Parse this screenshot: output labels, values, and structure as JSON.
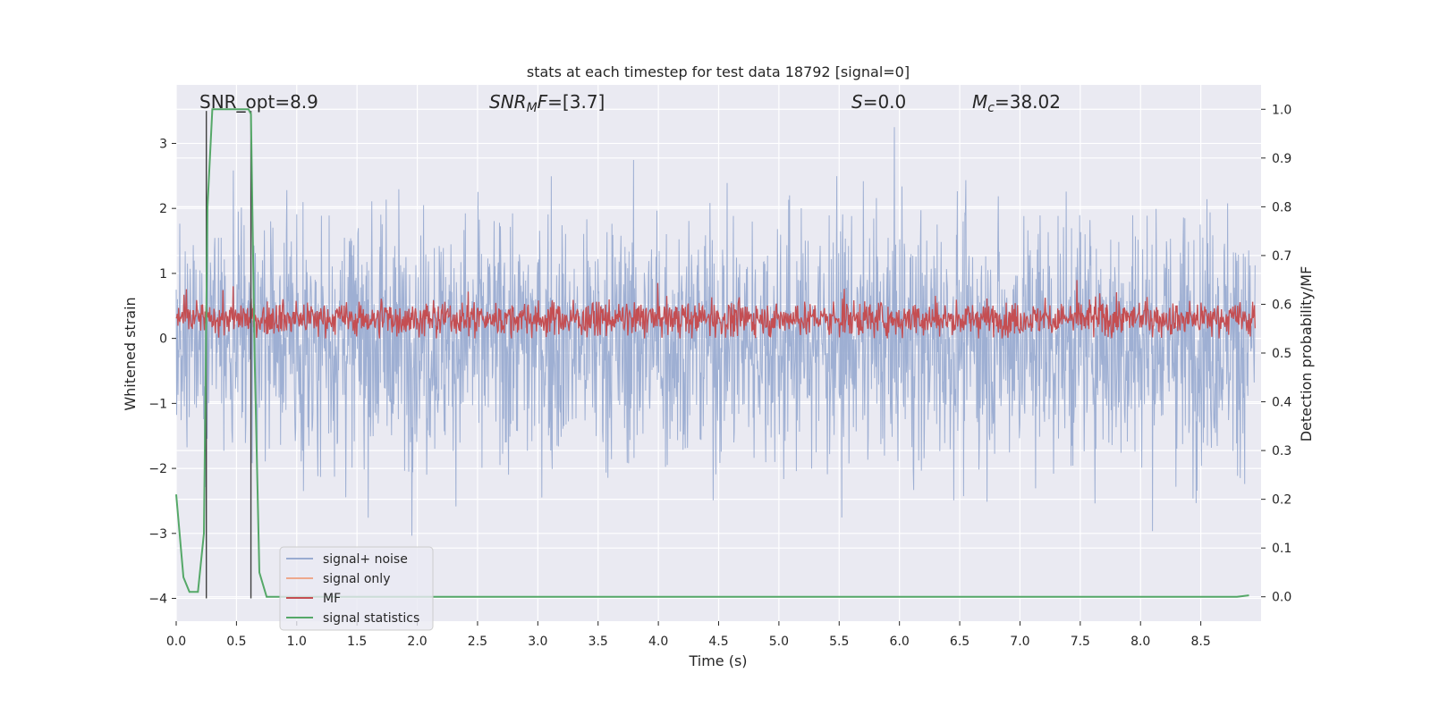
{
  "chart_data": {
    "type": "line",
    "title": "stats at each timestep for test data 18792 [signal=0]",
    "xlabel": "Time (s)",
    "ylabel": "Whitened strain",
    "y2label": "Detection probability/MF",
    "xlim": [
      0.0,
      9.0
    ],
    "ylim": [
      -4.35,
      3.9
    ],
    "y2lim": [
      -0.05,
      1.05
    ],
    "x_ticks": [
      0.0,
      0.5,
      1.0,
      1.5,
      2.0,
      2.5,
      3.0,
      3.5,
      4.0,
      4.5,
      5.0,
      5.5,
      6.0,
      6.5,
      7.0,
      7.5,
      8.0,
      8.5
    ],
    "x_tick_labels": [
      "0.0",
      "0.5",
      "1.0",
      "1.5",
      "2.0",
      "2.5",
      "3.0",
      "3.5",
      "4.0",
      "4.5",
      "5.0",
      "5.5",
      "6.0",
      "6.5",
      "7.0",
      "7.5",
      "8.0",
      "8.5"
    ],
    "y_ticks": [
      3,
      2,
      1,
      0,
      -1,
      -2,
      -3,
      -4
    ],
    "y_tick_labels": [
      "3",
      "2",
      "1",
      "0",
      "−1",
      "−2",
      "−3",
      "−4"
    ],
    "y2_ticks": [
      1.0,
      0.9,
      0.8,
      0.7,
      0.6,
      0.5,
      0.4,
      0.3,
      0.2,
      0.1,
      0.0
    ],
    "y2_tick_labels": [
      "1.0",
      "0.9",
      "0.8",
      "0.7",
      "0.6",
      "0.5",
      "0.4",
      "0.3",
      "0.2",
      "0.1",
      "0.0"
    ],
    "grid": true,
    "legend_position": "lower-left",
    "annotations": {
      "snr_opt": "SNR_opt=8.9",
      "snr_mf": "=[3.7]",
      "snr_mf_sym": "SNR",
      "snr_mf_sub": "M",
      "snr_mf_tail": "F",
      "s_stat": "=0.0",
      "s_sym": "S",
      "mc": "=38.02",
      "mc_sym": "M",
      "mc_sub": "c"
    },
    "noise_envelope": {
      "approx_min": -3.4,
      "approx_max": 3.5
    },
    "mf_band": {
      "approx_min": 0.0,
      "approx_max": 1.0
    },
    "vertical_markers_x": [
      0.25,
      0.62
    ],
    "series": [
      {
        "name": "signal+ noise",
        "color": "#9aacd1",
        "axis": "left",
        "style": "noise"
      },
      {
        "name": "signal only",
        "color": "#eea88c",
        "axis": "left",
        "style": "flat",
        "values": []
      },
      {
        "name": "MF",
        "color": "#c44e52",
        "axis": "left",
        "style": "band"
      },
      {
        "name": "signal statistics",
        "color": "#55a868",
        "axis": "right",
        "x": [
          0.0,
          0.06,
          0.11,
          0.18,
          0.23,
          0.26,
          0.3,
          0.32,
          0.6,
          0.62,
          0.65,
          0.69,
          0.75,
          0.8,
          8.7,
          8.8,
          8.9
        ],
        "values": [
          0.21,
          0.04,
          0.01,
          0.01,
          0.13,
          0.8,
          1.0,
          1.0,
          1.0,
          0.99,
          0.5,
          0.05,
          0.0,
          0.0,
          0.0,
          0.0,
          0.003
        ]
      }
    ]
  }
}
